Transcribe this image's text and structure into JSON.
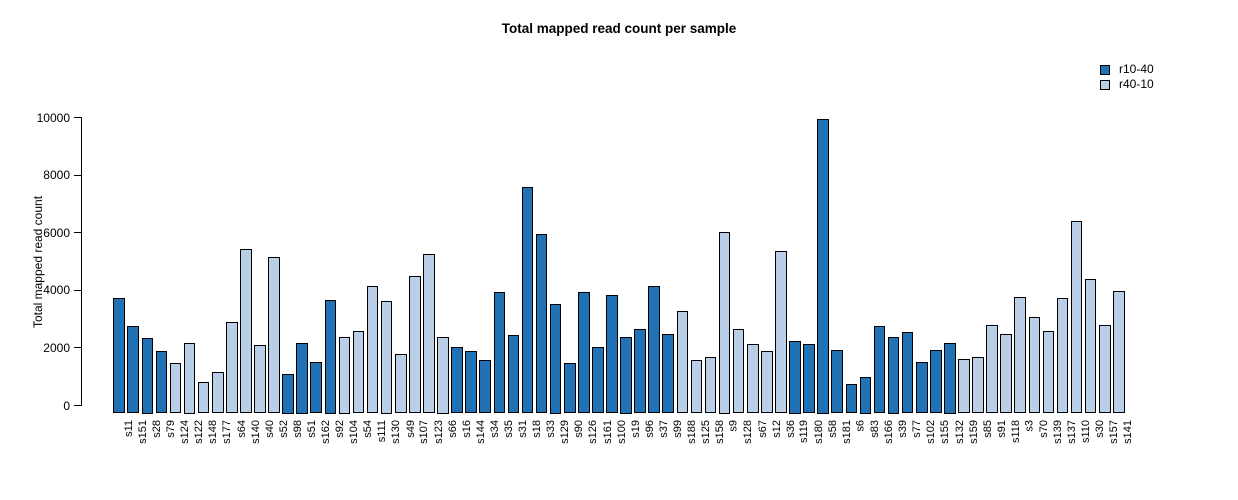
{
  "chart_data": {
    "type": "bar",
    "title": "Total mapped read count per sample",
    "ylabel": "Total mapped read count",
    "xlabel": "",
    "ylim": [
      0,
      10000
    ],
    "yticks": [
      0,
      2000,
      4000,
      6000,
      8000,
      10000
    ],
    "grid": false,
    "legend_position": "top-right",
    "bar_border_color": "#000000",
    "series": [
      {
        "name": "r10-40",
        "color": "#2171b5"
      },
      {
        "name": "r40-10",
        "color": "#b9cfe8"
      }
    ],
    "samples": [
      {
        "label": "s11",
        "value": 3900,
        "series": "r10-40"
      },
      {
        "label": "s151",
        "value": 2950,
        "series": "r10-40"
      },
      {
        "label": "s28",
        "value": 2550,
        "series": "r10-40"
      },
      {
        "label": "s79",
        "value": 2100,
        "series": "r10-40"
      },
      {
        "label": "s124",
        "value": 1700,
        "series": "r40-10"
      },
      {
        "label": "s122",
        "value": 2400,
        "series": "r40-10"
      },
      {
        "label": "s148",
        "value": 1050,
        "series": "r40-10"
      },
      {
        "label": "s177",
        "value": 1400,
        "series": "r40-10"
      },
      {
        "label": "s64",
        "value": 3100,
        "series": "r40-10"
      },
      {
        "label": "s140",
        "value": 5550,
        "series": "r40-10"
      },
      {
        "label": "s40",
        "value": 2300,
        "series": "r40-10"
      },
      {
        "label": "s52",
        "value": 5300,
        "series": "r40-10"
      },
      {
        "label": "s98",
        "value": 1350,
        "series": "r10-40"
      },
      {
        "label": "s51",
        "value": 2400,
        "series": "r10-40"
      },
      {
        "label": "s162",
        "value": 1750,
        "series": "r10-40"
      },
      {
        "label": "s92",
        "value": 3850,
        "series": "r10-40"
      },
      {
        "label": "s104",
        "value": 2600,
        "series": "r40-10"
      },
      {
        "label": "s54",
        "value": 2800,
        "series": "r40-10"
      },
      {
        "label": "s111",
        "value": 4300,
        "series": "r40-10"
      },
      {
        "label": "s130",
        "value": 3800,
        "series": "r40-10"
      },
      {
        "label": "s49",
        "value": 2000,
        "series": "r40-10"
      },
      {
        "label": "s107",
        "value": 4650,
        "series": "r40-10"
      },
      {
        "label": "s123",
        "value": 5400,
        "series": "r40-10"
      },
      {
        "label": "s66",
        "value": 2600,
        "series": "r40-10"
      },
      {
        "label": "s16",
        "value": 2250,
        "series": "r10-40"
      },
      {
        "label": "s144",
        "value": 2100,
        "series": "r10-40"
      },
      {
        "label": "s34",
        "value": 1800,
        "series": "r10-40"
      },
      {
        "label": "s35",
        "value": 4100,
        "series": "r10-40"
      },
      {
        "label": "s31",
        "value": 2650,
        "series": "r10-40"
      },
      {
        "label": "s18",
        "value": 7650,
        "series": "r10-40"
      },
      {
        "label": "s33",
        "value": 6050,
        "series": "r10-40"
      },
      {
        "label": "s129",
        "value": 3700,
        "series": "r10-40"
      },
      {
        "label": "s90",
        "value": 1700,
        "series": "r10-40"
      },
      {
        "label": "s126",
        "value": 4100,
        "series": "r10-40"
      },
      {
        "label": "s161",
        "value": 2250,
        "series": "r10-40"
      },
      {
        "label": "s100",
        "value": 4000,
        "series": "r10-40"
      },
      {
        "label": "s19",
        "value": 2600,
        "series": "r10-40"
      },
      {
        "label": "s96",
        "value": 2850,
        "series": "r10-40"
      },
      {
        "label": "s37",
        "value": 4300,
        "series": "r10-40"
      },
      {
        "label": "s99",
        "value": 2700,
        "series": "r10-40"
      },
      {
        "label": "s188",
        "value": 3450,
        "series": "r40-10"
      },
      {
        "label": "s125",
        "value": 1800,
        "series": "r40-10"
      },
      {
        "label": "s158",
        "value": 1900,
        "series": "r40-10"
      },
      {
        "label": "s9",
        "value": 6150,
        "series": "r40-10"
      },
      {
        "label": "s128",
        "value": 2850,
        "series": "r40-10"
      },
      {
        "label": "s67",
        "value": 2350,
        "series": "r40-10"
      },
      {
        "label": "s12",
        "value": 2100,
        "series": "r40-10"
      },
      {
        "label": "s36",
        "value": 5500,
        "series": "r40-10"
      },
      {
        "label": "s119",
        "value": 2450,
        "series": "r10-40"
      },
      {
        "label": "s180",
        "value": 2350,
        "series": "r10-40"
      },
      {
        "label": "s58",
        "value": 9950,
        "series": "r10-40"
      },
      {
        "label": "s181",
        "value": 2150,
        "series": "r10-40"
      },
      {
        "label": "s6",
        "value": 1000,
        "series": "r10-40"
      },
      {
        "label": "s83",
        "value": 1250,
        "series": "r10-40"
      },
      {
        "label": "s166",
        "value": 2950,
        "series": "r10-40"
      },
      {
        "label": "s39",
        "value": 2600,
        "series": "r10-40"
      },
      {
        "label": "s77",
        "value": 2750,
        "series": "r10-40"
      },
      {
        "label": "s102",
        "value": 1750,
        "series": "r10-40"
      },
      {
        "label": "s155",
        "value": 2150,
        "series": "r10-40"
      },
      {
        "label": "s132",
        "value": 2400,
        "series": "r10-40"
      },
      {
        "label": "s159",
        "value": 1850,
        "series": "r40-10"
      },
      {
        "label": "s85",
        "value": 1900,
        "series": "r40-10"
      },
      {
        "label": "s91",
        "value": 3000,
        "series": "r40-10"
      },
      {
        "label": "s118",
        "value": 2700,
        "series": "r40-10"
      },
      {
        "label": "s3",
        "value": 3950,
        "series": "r40-10"
      },
      {
        "label": "s70",
        "value": 3250,
        "series": "r40-10"
      },
      {
        "label": "s139",
        "value": 2800,
        "series": "r40-10"
      },
      {
        "label": "s137",
        "value": 3900,
        "series": "r40-10"
      },
      {
        "label": "s110",
        "value": 6500,
        "series": "r40-10"
      },
      {
        "label": "s30",
        "value": 4550,
        "series": "r40-10"
      },
      {
        "label": "s157",
        "value": 3000,
        "series": "r40-10"
      },
      {
        "label": "s141",
        "value": 4150,
        "series": "r40-10"
      }
    ]
  }
}
